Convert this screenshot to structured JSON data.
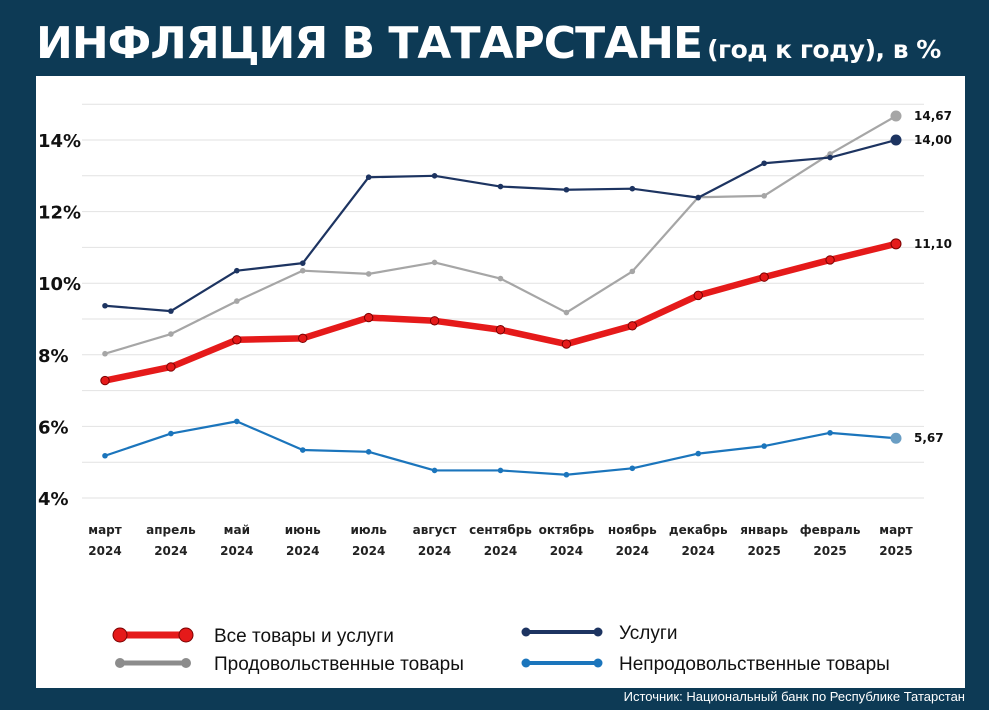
{
  "title": {
    "main": "ИНФЛЯЦИЯ В ТАТАРСТАНЕ",
    "sub": "(год к году), в %"
  },
  "source": "Источник: Национальный банк по Республике Татарстан",
  "chart_data": {
    "type": "line",
    "categories": [
      [
        "март",
        "2024"
      ],
      [
        "апрель",
        "2024"
      ],
      [
        "май",
        "2024"
      ],
      [
        "июнь",
        "2024"
      ],
      [
        "июль",
        "2024"
      ],
      [
        "август",
        "2024"
      ],
      [
        "сентябрь",
        "2024"
      ],
      [
        "октябрь",
        "2024"
      ],
      [
        "ноябрь",
        "2024"
      ],
      [
        "декабрь",
        "2024"
      ],
      [
        "январь",
        "2025"
      ],
      [
        "февраль",
        "2025"
      ],
      [
        "март",
        "2025"
      ]
    ],
    "yticks": [
      {
        "value": 4,
        "label": "4%"
      },
      {
        "value": 6,
        "label": "6%"
      },
      {
        "value": 8,
        "label": "8%"
      },
      {
        "value": 10,
        "label": "10%"
      },
      {
        "value": 12,
        "label": "12%"
      },
      {
        "value": 14,
        "label": "14%"
      }
    ],
    "ylim": [
      3.8,
      15.2
    ],
    "grid": true,
    "legend_position": "bottom",
    "series": [
      {
        "name": "Продовольственные товары",
        "color": "#a6a6a6",
        "values": [
          8.03,
          8.58,
          9.5,
          10.35,
          10.26,
          10.58,
          10.13,
          9.18,
          10.33,
          12.4,
          12.44,
          13.61,
          14.67
        ],
        "end_label": "14,67"
      },
      {
        "name": "Услуги",
        "color": "#1d3461",
        "values": [
          9.37,
          9.22,
          10.35,
          10.56,
          12.96,
          13.0,
          12.7,
          12.61,
          12.64,
          12.39,
          13.35,
          13.51,
          14.0
        ],
        "end_label": "14,00"
      },
      {
        "name": "Все товары и услуги",
        "color": "#e51a1a",
        "values": [
          7.28,
          7.66,
          8.42,
          8.46,
          9.04,
          8.95,
          8.7,
          8.3,
          8.81,
          9.66,
          10.17,
          10.65,
          11.1
        ],
        "end_label": "11,10"
      },
      {
        "name": "Непродовольственные товары",
        "color": "#1b75bc",
        "values": [
          5.18,
          5.8,
          6.14,
          5.34,
          5.29,
          4.77,
          4.77,
          4.65,
          4.83,
          5.24,
          5.45,
          5.82,
          5.67
        ],
        "end_label": "5,67"
      }
    ]
  }
}
